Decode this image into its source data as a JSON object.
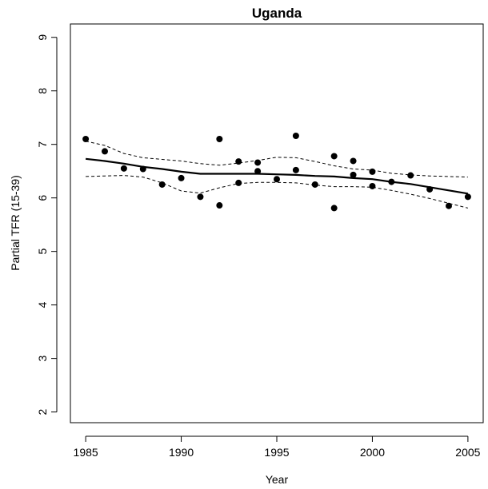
{
  "chart_data": {
    "type": "scatter",
    "title": "Uganda",
    "xlabel": "Year",
    "ylabel": "Partial TFR (15-39)",
    "xlim": [
      1984.2,
      2005.8
    ],
    "ylim": [
      1.8,
      9.25
    ],
    "x_ticks": [
      1985,
      1990,
      1995,
      2000,
      2005
    ],
    "y_ticks": [
      2,
      3,
      4,
      5,
      6,
      7,
      8,
      9
    ],
    "grid": false,
    "points": [
      {
        "x": 1985,
        "y": 7.1
      },
      {
        "x": 1986,
        "y": 6.87
      },
      {
        "x": 1987,
        "y": 6.55
      },
      {
        "x": 1988,
        "y": 6.54
      },
      {
        "x": 1989,
        "y": 6.25
      },
      {
        "x": 1990,
        "y": 6.37
      },
      {
        "x": 1991,
        "y": 6.02
      },
      {
        "x": 1992,
        "y": 7.1
      },
      {
        "x": 1992,
        "y": 5.86
      },
      {
        "x": 1993,
        "y": 6.68
      },
      {
        "x": 1993,
        "y": 6.28
      },
      {
        "x": 1994,
        "y": 6.66
      },
      {
        "x": 1994,
        "y": 6.5
      },
      {
        "x": 1995,
        "y": 6.35
      },
      {
        "x": 1996,
        "y": 7.16
      },
      {
        "x": 1996,
        "y": 6.52
      },
      {
        "x": 1997,
        "y": 6.25
      },
      {
        "x": 1998,
        "y": 6.78
      },
      {
        "x": 1998,
        "y": 5.81
      },
      {
        "x": 1999,
        "y": 6.69
      },
      {
        "x": 1999,
        "y": 6.43
      },
      {
        "x": 2000,
        "y": 6.49
      },
      {
        "x": 2000,
        "y": 6.22
      },
      {
        "x": 2001,
        "y": 6.3
      },
      {
        "x": 2002,
        "y": 6.42
      },
      {
        "x": 2003,
        "y": 6.16
      },
      {
        "x": 2004,
        "y": 5.85
      },
      {
        "x": 2005,
        "y": 6.02
      }
    ],
    "series": [
      {
        "style": "solid",
        "x": [
          1985,
          1986,
          1987,
          1988,
          1989,
          1990,
          1991,
          1992,
          1993,
          1994,
          1995,
          1996,
          1997,
          1998,
          1999,
          2000,
          2001,
          2002,
          2003,
          2004,
          2005
        ],
        "y": [
          6.73,
          6.69,
          6.64,
          6.58,
          6.54,
          6.49,
          6.45,
          6.45,
          6.45,
          6.45,
          6.44,
          6.43,
          6.41,
          6.4,
          6.37,
          6.35,
          6.3,
          6.26,
          6.2,
          6.14,
          6.08
        ]
      },
      {
        "style": "dashed",
        "x": [
          1985,
          1986,
          1987,
          1988,
          1989,
          1990,
          1991,
          1992,
          1993,
          1994,
          1995,
          1996,
          1997,
          1998,
          1999,
          2000,
          2001,
          2002,
          2003,
          2004,
          2005
        ],
        "y": [
          7.06,
          6.98,
          6.83,
          6.75,
          6.72,
          6.69,
          6.64,
          6.61,
          6.65,
          6.7,
          6.76,
          6.75,
          6.68,
          6.6,
          6.54,
          6.52,
          6.46,
          6.43,
          6.41,
          6.4,
          6.39
        ]
      },
      {
        "style": "dashed",
        "x": [
          1985,
          1986,
          1987,
          1988,
          1989,
          1990,
          1991,
          1992,
          1993,
          1994,
          1995,
          1996,
          1997,
          1998,
          1999,
          2000,
          2001,
          2002,
          2003,
          2004,
          2005
        ],
        "y": [
          6.4,
          6.41,
          6.42,
          6.39,
          6.28,
          6.13,
          6.09,
          6.19,
          6.27,
          6.29,
          6.29,
          6.28,
          6.24,
          6.21,
          6.21,
          6.2,
          6.14,
          6.07,
          5.99,
          5.9,
          5.81
        ]
      }
    ],
    "colors": {
      "ink": "#000000",
      "background": "#ffffff"
    }
  }
}
